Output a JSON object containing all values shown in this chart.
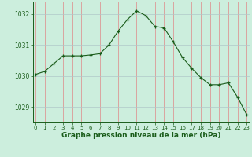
{
  "hours": [
    0,
    1,
    2,
    3,
    4,
    5,
    6,
    7,
    8,
    9,
    10,
    11,
    12,
    13,
    14,
    15,
    16,
    17,
    18,
    19,
    20,
    21,
    22,
    23
  ],
  "pressure": [
    1030.05,
    1030.15,
    1030.4,
    1030.65,
    1030.65,
    1030.65,
    1030.68,
    1030.72,
    1031.0,
    1031.45,
    1031.82,
    1032.1,
    1031.95,
    1031.6,
    1031.55,
    1031.1,
    1030.6,
    1030.25,
    1029.95,
    1029.72,
    1029.72,
    1029.78,
    1029.32,
    1028.75
  ],
  "ylim": [
    1028.5,
    1032.4
  ],
  "yticks": [
    1029,
    1030,
    1031,
    1032
  ],
  "xticks": [
    0,
    1,
    2,
    3,
    4,
    5,
    6,
    7,
    8,
    9,
    10,
    11,
    12,
    13,
    14,
    15,
    16,
    17,
    18,
    19,
    20,
    21,
    22,
    23
  ],
  "line_color": "#1a5c1a",
  "marker_color": "#1a5c1a",
  "bg_color": "#cceedd",
  "grid_color": "#b0c8c8",
  "grid_color_red": "#e08888",
  "xlabel": "Graphe pression niveau de la mer (hPa)",
  "xlabel_color": "#1a5c1a",
  "tick_color": "#1a5c1a",
  "border_color": "#1a5c1a"
}
